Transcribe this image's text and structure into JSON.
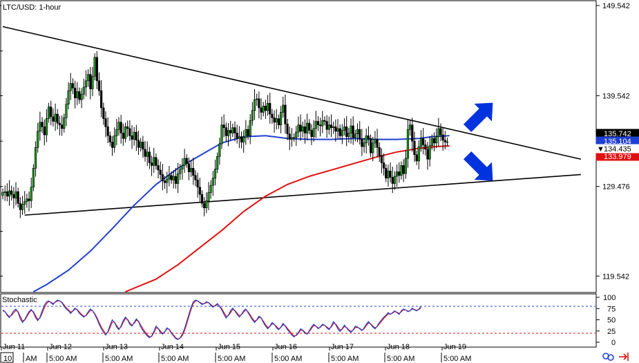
{
  "chart_data": {
    "type": "candlestick",
    "title": "LTC/USD: 1-hour",
    "price_axis": {
      "ylim": [
        117.8,
        150.0
      ],
      "ticks": [
        "149.542",
        "139.542",
        "129.476",
        "119.542"
      ],
      "tick_values": [
        149.542,
        139.542,
        129.476,
        119.542
      ],
      "labels": [
        {
          "text": "135.742",
          "value": 135.742,
          "color": "#ffffff",
          "bg": "#000000"
        },
        {
          "text": "135.104",
          "value": 135.104,
          "color": "#ffffff",
          "bg": "#1f3fd0"
        },
        {
          "text": "134.435",
          "value": 134.435,
          "color": "#000000",
          "bg": "#ffffff",
          "marker": "▼"
        },
        {
          "text": "133.979",
          "value": 133.979,
          "color": "#ffffff",
          "bg": "#e01010"
        }
      ]
    },
    "x_axis": {
      "hours": 204,
      "day_labels": [
        "Jun 11",
        "Jun 12",
        "Jun 13",
        "Jun 14",
        "Jun 15",
        "Jun 16",
        "Jun 17",
        "Jun 18",
        "Jun 19"
      ],
      "time_labels": [
        "10:",
        "AM",
        "5:00 AM",
        "5:00 AM",
        "5:00 AM",
        "5:00 AM",
        "5:00 AM",
        "5:00 AM",
        "5:00 AM",
        "5:00 AM"
      ]
    },
    "candles_close": [
      128.8,
      128.9,
      128.4,
      129.0,
      128.6,
      128.2,
      128.9,
      127.6,
      126.9,
      127.5,
      127.8,
      128.1,
      127.9,
      129.4,
      131.5,
      133.8,
      135.6,
      136.6,
      136.1,
      135.2,
      137.0,
      138.3,
      137.2,
      136.7,
      137.5,
      136.5,
      136.3,
      135.9,
      137.1,
      138.6,
      140.1,
      140.9,
      140.4,
      139.3,
      140.0,
      139.1,
      139.7,
      140.5,
      141.2,
      141.9,
      140.3,
      141.7,
      143.8,
      141.2,
      140.1,
      138.2,
      137.0,
      136.1,
      135.1,
      134.4,
      133.8,
      135.1,
      135.8,
      136.6,
      135.4,
      134.8,
      136.1,
      135.9,
      135.1,
      134.7,
      135.5,
      134.6,
      133.8,
      134.4,
      133.6,
      132.8,
      133.3,
      132.1,
      131.8,
      132.7,
      131.8,
      131.3,
      130.8,
      130.1,
      129.9,
      130.3,
      130.7,
      130.2,
      130.6,
      129.8,
      130.9,
      131.4,
      131.8,
      132.6,
      132.0,
      131.1,
      131.5,
      130.7,
      130.2,
      129.4,
      128.6,
      127.6,
      127.1,
      127.9,
      128.8,
      129.6,
      130.4,
      131.4,
      132.8,
      134.2,
      136.3,
      136.0,
      135.1,
      135.7,
      135.4,
      136.0,
      135.4,
      134.8,
      135.0,
      134.4,
      134.9,
      135.8,
      135.1,
      136.8,
      137.9,
      139.1,
      139.2,
      138.2,
      137.7,
      138.4,
      137.9,
      138.7,
      137.5,
      137.1,
      136.6,
      137.0,
      136.3,
      137.7,
      138.5,
      136.4,
      135.3,
      134.7,
      134.9,
      134.9,
      135.5,
      136.3,
      135.6,
      136.1,
      135.4,
      136.5,
      135.7,
      135.0,
      135.9,
      136.7,
      136.3,
      136.2,
      136.8,
      136.7,
      135.8,
      136.3,
      136.0,
      136.1,
      135.6,
      135.9,
      135.1,
      135.7,
      136.1,
      135.0,
      135.4,
      136.2,
      134.9,
      135.3,
      135.8,
      134.7,
      133.9,
      134.3,
      135.1,
      134.8,
      133.2,
      134.3,
      134.7,
      133.8,
      132.9,
      132.1,
      131.5,
      130.4,
      131.2,
      130.5,
      129.8,
      130.6,
      131.1,
      130.7,
      131.8,
      130.9,
      132.6,
      135.8,
      136.3,
      134.5,
      133.0,
      132.3,
      133.9,
      134.8,
      134.1,
      133.6,
      132.5,
      134.0,
      134.8,
      134.3,
      135.0,
      135.9,
      135.2,
      134.6,
      134.4,
      134.435
    ],
    "ma_blue": {
      "color": "#1f3fd0",
      "points": [
        [
          14,
          117.8
        ],
        [
          20,
          118.6
        ],
        [
          30,
          120.2
        ],
        [
          40,
          122.3
        ],
        [
          50,
          124.8
        ],
        [
          60,
          127.4
        ],
        [
          70,
          129.7
        ],
        [
          80,
          131.5
        ],
        [
          90,
          132.9
        ],
        [
          100,
          134.3
        ],
        [
          110,
          135.0
        ],
        [
          120,
          135.1
        ],
        [
          130,
          134.8
        ],
        [
          140,
          134.7
        ],
        [
          150,
          134.7
        ],
        [
          160,
          134.8
        ],
        [
          170,
          134.7
        ],
        [
          180,
          134.7
        ],
        [
          190,
          134.8
        ],
        [
          196,
          135.0
        ],
        [
          204,
          135.104
        ]
      ]
    },
    "ma_red": {
      "color": "#e01010",
      "points": [
        [
          56,
          117.6
        ],
        [
          70,
          119.2
        ],
        [
          80,
          120.8
        ],
        [
          90,
          122.7
        ],
        [
          100,
          124.6
        ],
        [
          110,
          126.7
        ],
        [
          120,
          128.4
        ],
        [
          130,
          129.7
        ],
        [
          140,
          130.6
        ],
        [
          150,
          131.3
        ],
        [
          160,
          132.0
        ],
        [
          170,
          132.7
        ],
        [
          180,
          133.3
        ],
        [
          190,
          133.7
        ],
        [
          198,
          133.9
        ],
        [
          204,
          133.979
        ]
      ]
    },
    "trendlines": [
      {
        "color": "#000000",
        "from": [
          0,
          147.2
        ],
        "to": [
          264,
          132.5
        ]
      },
      {
        "color": "#000000",
        "from": [
          10,
          126.3
        ],
        "to": [
          264,
          130.8
        ]
      }
    ],
    "arrows": [
      {
        "direction": "up-right",
        "color": "#0033dd"
      },
      {
        "direction": "down-right",
        "color": "#0033dd"
      }
    ],
    "stochastic": {
      "title": "Stochastic",
      "ylim": [
        0,
        100
      ],
      "ticks": [
        "100",
        "75",
        "50",
        "25",
        "0"
      ],
      "tick_values": [
        100,
        75,
        50,
        25,
        0
      ],
      "levels": [
        80,
        20
      ],
      "main_color": "#1f3fd0",
      "signal_color": "#e01010",
      "main": [
        72,
        68,
        60,
        55,
        62,
        70,
        74,
        66,
        52,
        44,
        50,
        60,
        68,
        73,
        66,
        55,
        48,
        56,
        70,
        82,
        90,
        92,
        88,
        84,
        90,
        94,
        92,
        88,
        80,
        74,
        70,
        64,
        70,
        76,
        72,
        64,
        60,
        56,
        60,
        68,
        74,
        70,
        62,
        52,
        40,
        30,
        22,
        16,
        24,
        38,
        50,
        44,
        34,
        28,
        36,
        48,
        56,
        50,
        40,
        36,
        44,
        52,
        46,
        34,
        26,
        20,
        14,
        10,
        14,
        24,
        36,
        30,
        22,
        18,
        24,
        32,
        28,
        20,
        14,
        8,
        6,
        10,
        18,
        30,
        46,
        62,
        78,
        90,
        94,
        92,
        88,
        84,
        86,
        90,
        88,
        82,
        78,
        82,
        86,
        80,
        72,
        62,
        54,
        60,
        70,
        76,
        70,
        62,
        56,
        62,
        70,
        74,
        66,
        58,
        50,
        44,
        50,
        58,
        54,
        44,
        36,
        30,
        36,
        44,
        40,
        32,
        28,
        34,
        42,
        36,
        28,
        22,
        16,
        12,
        16,
        22,
        30,
        26,
        20,
        18,
        26,
        34,
        40,
        36,
        30,
        34,
        40,
        38,
        32,
        28,
        36,
        46,
        40,
        30,
        24,
        30,
        38,
        32,
        26,
        22,
        28,
        36,
        34,
        30,
        26,
        32,
        40,
        46,
        40,
        34,
        30,
        36,
        44,
        50,
        56,
        60,
        66,
        62,
        66,
        70,
        66,
        62,
        70,
        74,
        72,
        68,
        70,
        76,
        72,
        70,
        74,
        80
      ],
      "signal": [
        70,
        68,
        62,
        57,
        60,
        66,
        71,
        68,
        57,
        48,
        49,
        57,
        65,
        71,
        68,
        59,
        51,
        54,
        65,
        77,
        86,
        91,
        89,
        86,
        89,
        92,
        92,
        89,
        83,
        77,
        72,
        67,
        69,
        74,
        73,
        67,
        62,
        58,
        59,
        65,
        71,
        70,
        64,
        55,
        44,
        34,
        26,
        19,
        22,
        33,
        45,
        45,
        37,
        30,
        34,
        44,
        53,
        51,
        43,
        38,
        42,
        49,
        47,
        38,
        30,
        23,
        17,
        12,
        13,
        21,
        32,
        31,
        25,
        20,
        23,
        30,
        29,
        22,
        16,
        10,
        7,
        9,
        15,
        26,
        41,
        57,
        73,
        86,
        92,
        92,
        89,
        86,
        86,
        88,
        88,
        84,
        80,
        81,
        84,
        81,
        75,
        66,
        58,
        59,
        66,
        73,
        71,
        65,
        59,
        61,
        67,
        72,
        68,
        61,
        53,
        47,
        49,
        55,
        54,
        47,
        39,
        33,
        35,
        41,
        40,
        35,
        30,
        33,
        39,
        37,
        31,
        25,
        19,
        14,
        15,
        20,
        27,
        27,
        22,
        19,
        24,
        31,
        37,
        36,
        32,
        33,
        38,
        38,
        34,
        30,
        34,
        42,
        41,
        34,
        27,
        29,
        35,
        33,
        28,
        24,
        27,
        33,
        33,
        31,
        27,
        30,
        37,
        43,
        41,
        36,
        32,
        35,
        41,
        47,
        53,
        58,
        63,
        63,
        65,
        68,
        67,
        64,
        68,
        72,
        72,
        69,
        70,
        74,
        73,
        71,
        73,
        77
      ]
    }
  }
}
